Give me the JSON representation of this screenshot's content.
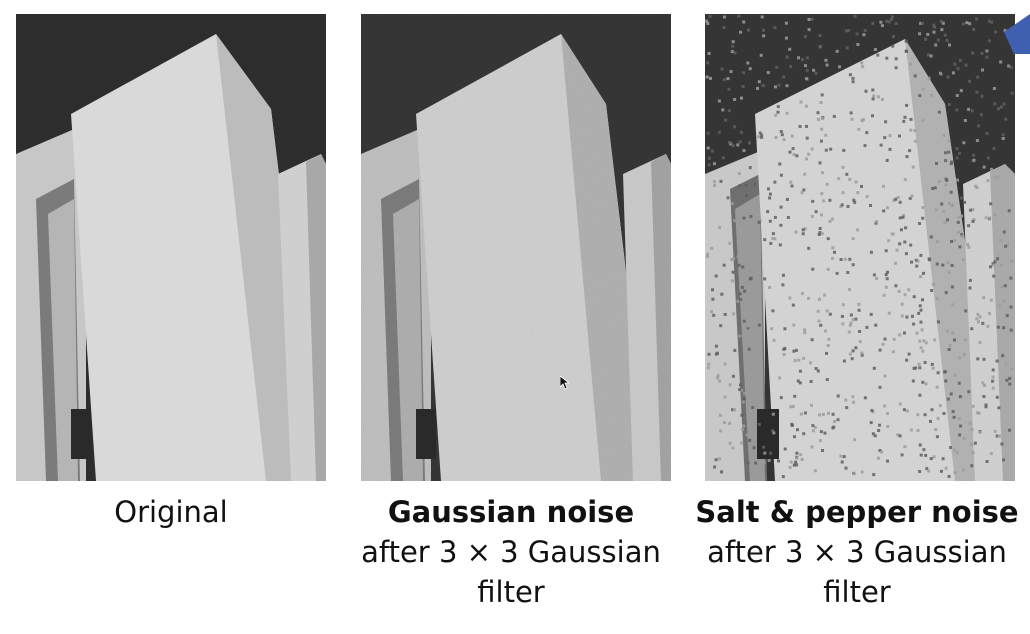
{
  "panels": [
    {
      "id": "original",
      "caption_lines": [
        "Original"
      ],
      "bold_first_line": false
    },
    {
      "id": "gaussian",
      "caption_lines": [
        "Gaussian noise",
        "after 3 × 3 Gaussian",
        "filter"
      ],
      "bold_first_line": true
    },
    {
      "id": "saltpepper",
      "caption_lines": [
        "Salt & pepper noise",
        "after 3 × 3 Gaussian",
        "filter"
      ],
      "bold_first_line": true
    }
  ],
  "colors": {
    "sky": "#2e2e2e",
    "front_face": "#d8d8d8",
    "side_face": "#a9a9a9",
    "left_post": "#c4c4c4",
    "gap": "#8a8a8a"
  },
  "icons": [
    "mouse-cursor-icon",
    "corner-accent-icon"
  ]
}
